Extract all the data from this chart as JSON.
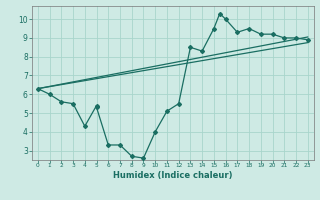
{
  "title": "",
  "xlabel": "Humidex (Indice chaleur)",
  "ylabel": "",
  "background_color": "#ceeae4",
  "grid_color": "#a8d5cc",
  "line_color": "#1a6e62",
  "xlim": [
    -0.5,
    23.5
  ],
  "ylim": [
    2.5,
    10.7
  ],
  "xticks": [
    0,
    1,
    2,
    3,
    4,
    5,
    6,
    7,
    8,
    9,
    10,
    11,
    12,
    13,
    14,
    15,
    16,
    17,
    18,
    19,
    20,
    21,
    22,
    23
  ],
  "yticks": [
    3,
    4,
    5,
    6,
    7,
    8,
    9,
    10
  ],
  "line1_x": [
    0,
    23
  ],
  "line1_y": [
    6.3,
    9.05
  ],
  "line2_x": [
    0,
    23
  ],
  "line2_y": [
    6.3,
    8.75
  ],
  "jagged_x": [
    0,
    1,
    2,
    3,
    4,
    5,
    5,
    6,
    7,
    8,
    9,
    10,
    11,
    12,
    13,
    14,
    15,
    15.5,
    16,
    17,
    18,
    19,
    20,
    21,
    22,
    23
  ],
  "jagged_y": [
    6.3,
    6.0,
    5.6,
    5.5,
    4.3,
    5.4,
    5.3,
    3.3,
    3.3,
    2.7,
    2.6,
    4.0,
    5.1,
    5.5,
    8.5,
    8.3,
    9.5,
    10.3,
    10.0,
    9.3,
    9.5,
    9.2,
    9.2,
    9.0,
    9.0,
    8.9
  ],
  "marker": "D",
  "markersize": 2.0,
  "linewidth": 0.9,
  "tick_fontsize_x": 4.2,
  "tick_fontsize_y": 5.5,
  "xlabel_fontsize": 6.0,
  "xlabel_fontweight": "bold"
}
